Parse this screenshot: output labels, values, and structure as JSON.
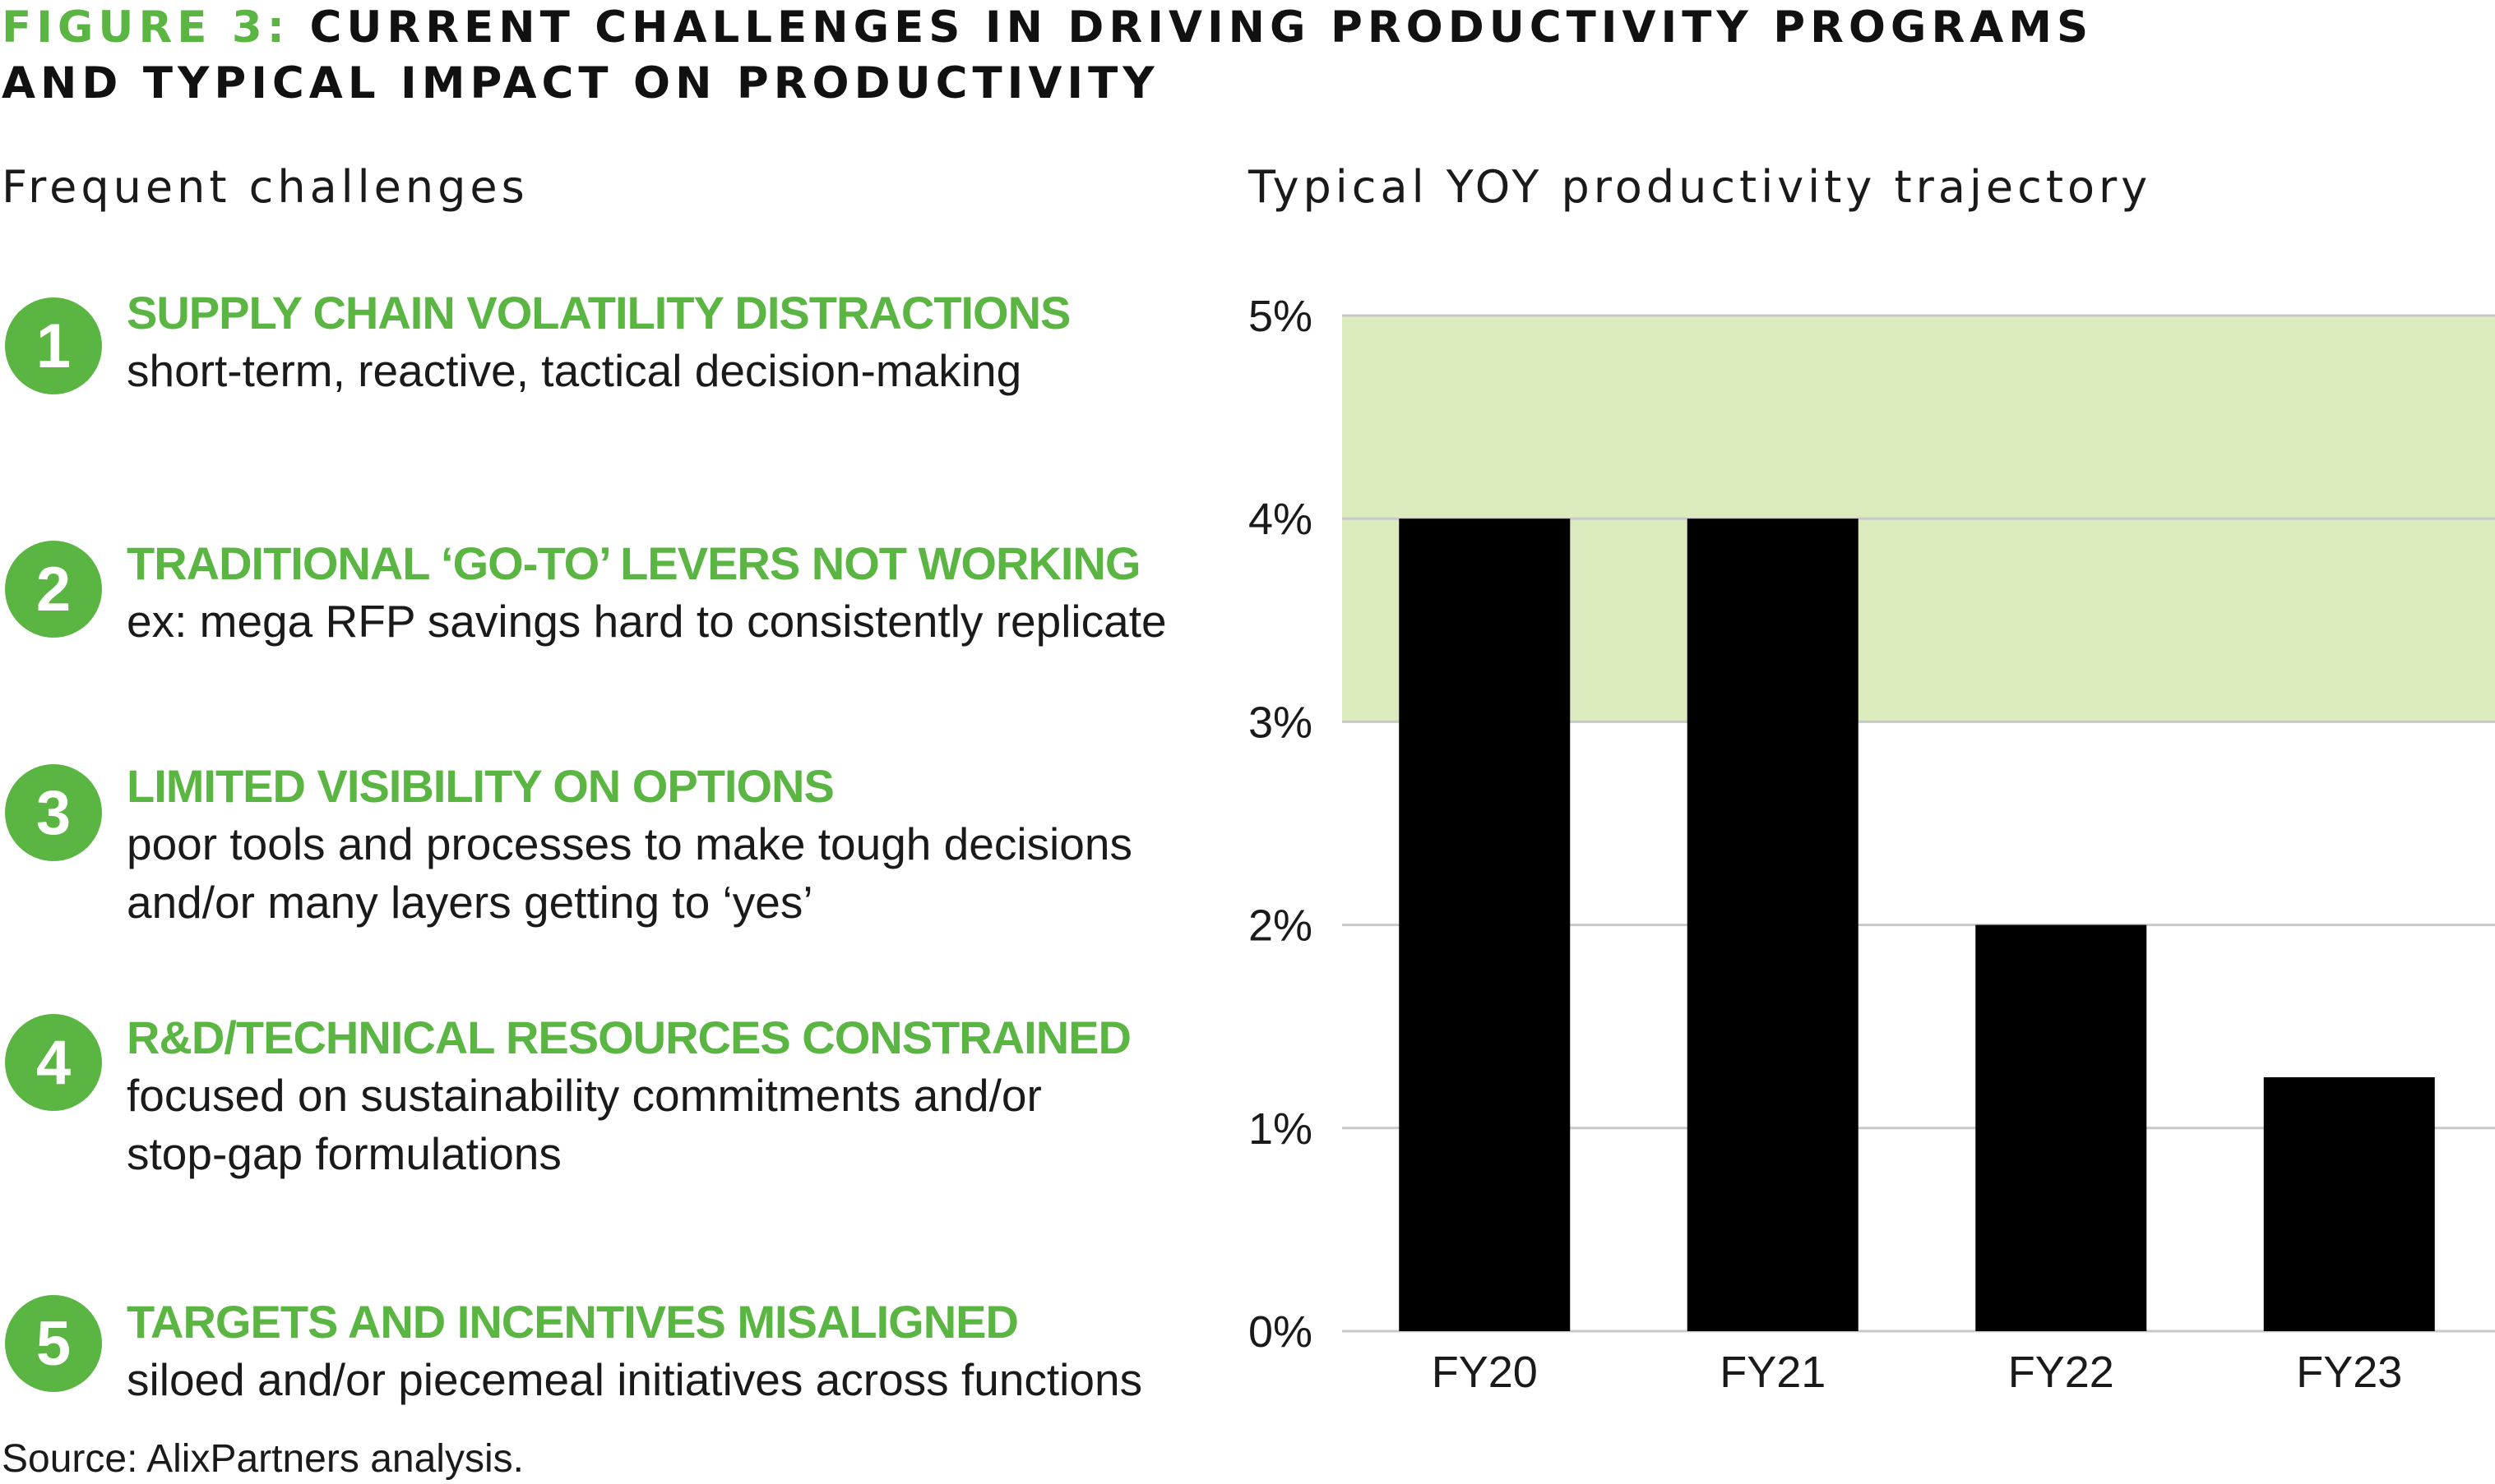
{
  "figure": {
    "label": "FIGURE 3:",
    "title_line1": "CURRENT CHALLENGES IN DRIVING PRODUCTIVITY PROGRAMS",
    "title_line2": "AND TYPICAL IMPACT ON PRODUCTIVITY"
  },
  "challenges": {
    "heading": "Frequent challenges",
    "items": [
      {
        "number": "1",
        "title": "SUPPLY CHAIN VOLATILITY DISTRACTIONS",
        "desc": "short-term, reactive, tactical decision-making"
      },
      {
        "number": "2",
        "title": "TRADITIONAL ‘GO-TO’ LEVERS NOT WORKING",
        "desc": "ex: mega RFP savings hard to consistently replicate"
      },
      {
        "number": "3",
        "title": "LIMITED VISIBILITY ON OPTIONS",
        "desc": "poor tools and processes to make tough decisions and/or many layers getting to ‘yes’"
      },
      {
        "number": "4",
        "title": "R&D/TECHNICAL RESOURCES CONSTRAINED",
        "desc": "focused on sustainability commitments and/or stop-gap formulations"
      },
      {
        "number": "5",
        "title": "TARGETS AND INCENTIVES MISALIGNED",
        "desc": "siloed and/or piecemeal initiatives across functions"
      }
    ]
  },
  "source": "Source: AlixPartners analysis.",
  "colors": {
    "accent": "#5bb543",
    "band": "#dbebbd",
    "bar": "#000000",
    "grid": "#c8c8c8"
  },
  "chart_data": {
    "type": "bar",
    "title": "Typical YOY productivity trajectory",
    "categories": [
      "FY20",
      "FY21",
      "FY22",
      "FY23"
    ],
    "values": [
      4,
      4,
      2,
      1.25
    ],
    "unit": "%",
    "ylim": [
      0,
      5
    ],
    "yticks": [
      "0%",
      "1%",
      "2%",
      "3%",
      "4%",
      "5%"
    ],
    "ytick_values": [
      0,
      1,
      2,
      3,
      4,
      5
    ],
    "target_band": [
      3,
      5
    ],
    "grid": true
  }
}
